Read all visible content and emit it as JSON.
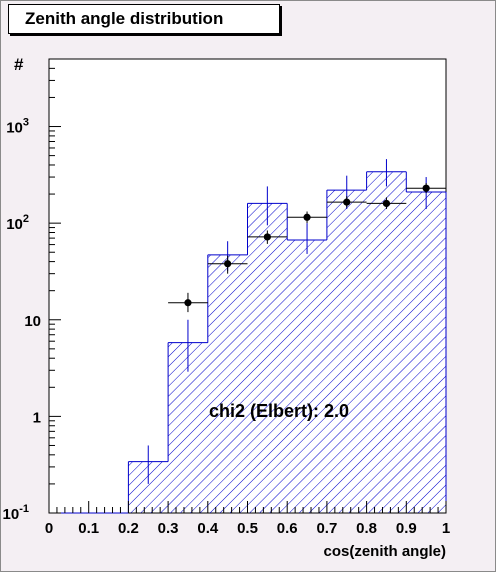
{
  "chart_data": {
    "type": "histogram",
    "title": "Zenith angle distribution",
    "xlabel": "cos(zenith angle)",
    "ylabel": "#",
    "xlim": [
      0,
      1
    ],
    "ylim": [
      0.1,
      5000
    ],
    "yscale": "log",
    "x_ticks": [
      "0",
      "0.1",
      "0.2",
      "0.3",
      "0.4",
      "0.5",
      "0.6",
      "0.7",
      "0.8",
      "0.9",
      "1"
    ],
    "y_ticks": [
      {
        "value": 0.1,
        "base": "10",
        "exp": "-1"
      },
      {
        "value": 1,
        "base": "1",
        "exp": ""
      },
      {
        "value": 10,
        "base": "10",
        "exp": ""
      },
      {
        "value": 100,
        "base": "10",
        "exp": "2"
      },
      {
        "value": 1000,
        "base": "10",
        "exp": "3"
      }
    ],
    "histogram": {
      "bin_edges": [
        0,
        0.1,
        0.2,
        0.3,
        0.4,
        0.5,
        0.6,
        0.7,
        0.8,
        0.9,
        1.0
      ],
      "values": [
        0.1,
        0.1,
        0.34,
        5.8,
        47,
        160,
        67,
        220,
        340,
        210
      ],
      "err_low": [
        0.1,
        0.1,
        0.2,
        2.9,
        32,
        95,
        48,
        140,
        240,
        140
      ],
      "err_high": [
        0.1,
        0.1,
        0.5,
        10,
        65,
        240,
        100,
        310,
        460,
        300
      ],
      "fill": "hatched",
      "color": "#0000cc"
    },
    "points": {
      "x": [
        0.35,
        0.45,
        0.55,
        0.65,
        0.75,
        0.85,
        0.95
      ],
      "y": [
        15,
        38,
        72,
        115,
        165,
        160,
        230
      ],
      "err_low": [
        12,
        30,
        61,
        100,
        145,
        140,
        205
      ],
      "err_high": [
        19,
        46,
        84,
        132,
        190,
        185,
        260
      ],
      "color": "#000000"
    },
    "annotation": "chi2 (Elbert): 2.0"
  }
}
